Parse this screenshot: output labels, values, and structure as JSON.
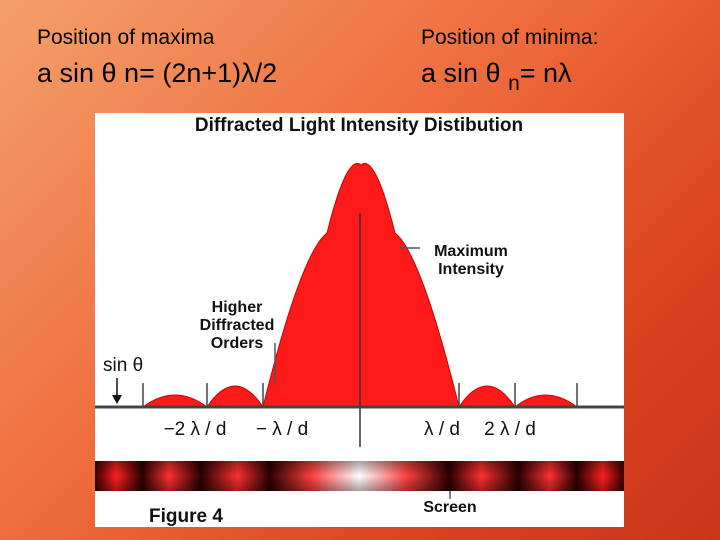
{
  "maxima": {
    "title": "Position of maxima",
    "formula_main": "a sin θ n= (2n+1)λ/2"
  },
  "minima": {
    "title": "Position of minima:",
    "formula_prefix": "a sin θ ",
    "formula_sub": "n",
    "formula_suffix": "= nλ"
  },
  "figure": {
    "title": "Diffracted Light Intensity Distibution",
    "max_label_line1": "Maximum",
    "max_label_line2": "Intensity",
    "higher_line1": "Higher",
    "higher_line2": "Diffracted",
    "higher_line3": "Orders",
    "axis_label": "sin θ",
    "ticks": [
      "−2 λ / d",
      "− λ / d",
      "λ / d",
      "2 λ / d"
    ],
    "screen_label": "Screen",
    "caption": "Figure 4",
    "colors": {
      "fill": "#ff1a1a",
      "dark": "#1a0000",
      "axis": "#333333"
    }
  }
}
